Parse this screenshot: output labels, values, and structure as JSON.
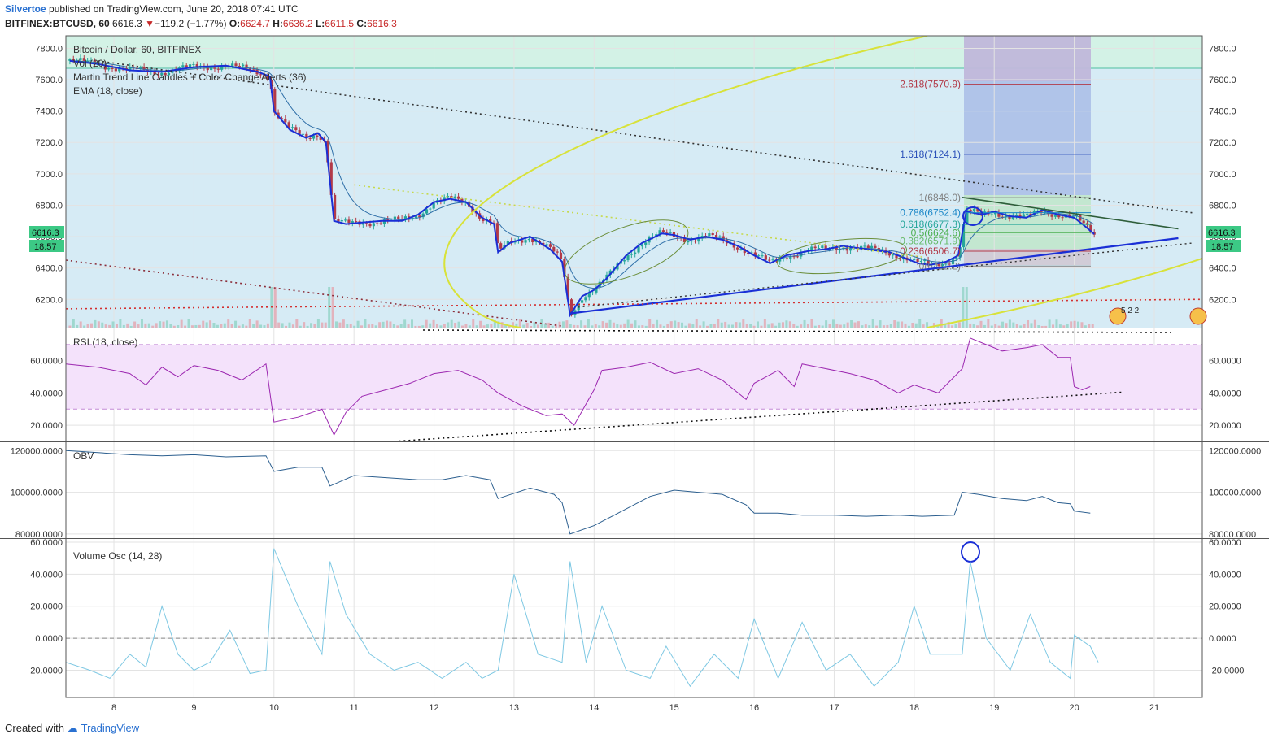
{
  "header": {
    "author": "Silvertoe",
    "published": "published on TradingView.com, June 20, 2018 07:41 UTC",
    "symbol": "BITFINEX:BTCUSD, 60",
    "last": "6616.3",
    "change": "−119.2 (−1.77%)",
    "o_label": "O:",
    "o": "6624.7",
    "h_label": "H:",
    "h": "6636.2",
    "l_label": "L:",
    "l": "6611.5",
    "c_label": "C:",
    "c": "6616.3"
  },
  "legend": {
    "title": "Bitcoin / Dollar, 60, BITFINEX",
    "vol": "Vol (20)",
    "martin": "Martin Trend Line Candles + Color Change Alerts (36)",
    "ema": "EMA (18, close)",
    "rsi": "RSI (18, close)",
    "obv": "OBV",
    "vosc": "Volume Osc (14, 28)"
  },
  "price_badge": {
    "value": "6616.3",
    "timer": "18:57"
  },
  "fib_labels": [
    "2.618(7570.9)",
    "1.618(7124.1)",
    "1(6848.0)",
    "0.786(6752.4)",
    "0.618(6677.3)",
    "0.5(6624.6)",
    "0.382(6571.9)",
    "0.236(6506.7)",
    "0(6412.2)"
  ],
  "fib_values": [
    7570.9,
    7124.1,
    6848.0,
    6752.4,
    6677.3,
    6624.6,
    6571.9,
    6506.7,
    6412.2
  ],
  "fib_colors": [
    "#b23a48",
    "#2a4fb8",
    "#808080",
    "#1e88c8",
    "#26a69a",
    "#4caf50",
    "#66bb6a",
    "#b23a48",
    "#808080"
  ],
  "badge_text": "5 2 2",
  "footer": {
    "created": "Created with",
    "brand": "TradingView"
  },
  "colors": {
    "candle_up": "#26a69a",
    "candle_down": "#b23a48",
    "trend": "#1a2fd6",
    "rsi": "#9c27b0",
    "obv": "#2c5f8f",
    "vosc": "#7ec8e3",
    "ema": "#2f6fa8",
    "price_badge": "#3cc985"
  },
  "chart_data": [
    {
      "type": "candlestick",
      "title": "Bitcoin / Dollar, 60, BITFINEX",
      "x_ticks": [
        "8",
        "9",
        "10",
        "11",
        "12",
        "13",
        "14",
        "15",
        "16",
        "17",
        "18",
        "19",
        "20",
        "21"
      ],
      "y_ticks": [
        "7800.0",
        "7600.0",
        "7400.0",
        "7200.0",
        "7000.0",
        "6800.0",
        "6600.0",
        "6400.0",
        "6200.0"
      ],
      "y_tick_values": [
        7800,
        7600,
        7400,
        7200,
        7000,
        6800,
        6600,
        6400,
        6200
      ],
      "ylim": [
        6020,
        7880
      ],
      "xlim": [
        7.4,
        21.6
      ],
      "close_path": [
        [
          7.45,
          7720
        ],
        [
          7.8,
          7700
        ],
        [
          8.2,
          7660
        ],
        [
          8.6,
          7650
        ],
        [
          9.0,
          7680
        ],
        [
          9.4,
          7690
        ],
        [
          9.8,
          7650
        ],
        [
          9.95,
          7620
        ],
        [
          10.0,
          7400
        ],
        [
          10.2,
          7280
        ],
        [
          10.4,
          7230
        ],
        [
          10.55,
          7260
        ],
        [
          10.65,
          7200
        ],
        [
          10.75,
          6700
        ],
        [
          10.9,
          6680
        ],
        [
          11.1,
          6690
        ],
        [
          11.35,
          6700
        ],
        [
          11.6,
          6700
        ],
        [
          11.8,
          6740
        ],
        [
          12.0,
          6820
        ],
        [
          12.2,
          6840
        ],
        [
          12.4,
          6820
        ],
        [
          12.6,
          6720
        ],
        [
          12.75,
          6680
        ],
        [
          12.8,
          6500
        ],
        [
          12.95,
          6560
        ],
        [
          13.2,
          6600
        ],
        [
          13.45,
          6520
        ],
        [
          13.6,
          6440
        ],
        [
          13.7,
          6100
        ],
        [
          13.85,
          6220
        ],
        [
          14.0,
          6260
        ],
        [
          14.15,
          6330
        ],
        [
          14.4,
          6480
        ],
        [
          14.6,
          6560
        ],
        [
          14.85,
          6620
        ],
        [
          15.0,
          6610
        ],
        [
          15.2,
          6580
        ],
        [
          15.4,
          6600
        ],
        [
          15.6,
          6580
        ],
        [
          15.8,
          6540
        ],
        [
          16.0,
          6480
        ],
        [
          16.2,
          6430
        ],
        [
          16.4,
          6480
        ],
        [
          16.7,
          6510
        ],
        [
          16.9,
          6520
        ],
        [
          17.1,
          6540
        ],
        [
          17.4,
          6520
        ],
        [
          17.7,
          6500
        ],
        [
          17.9,
          6460
        ],
        [
          18.05,
          6430
        ],
        [
          18.2,
          6420
        ],
        [
          18.4,
          6440
        ],
        [
          18.55,
          6480
        ],
        [
          18.65,
          6760
        ],
        [
          18.85,
          6740
        ],
        [
          19.0,
          6760
        ],
        [
          19.2,
          6730
        ],
        [
          19.4,
          6720
        ],
        [
          19.6,
          6770
        ],
        [
          19.8,
          6740
        ],
        [
          20.0,
          6720
        ],
        [
          20.15,
          6660
        ],
        [
          20.25,
          6616
        ]
      ],
      "fib_levels": [
        7570.9,
        7124.1,
        6848.0,
        6752.4,
        6677.3,
        6624.6,
        6571.9,
        6506.7,
        6412.2
      ],
      "trendline_support": [
        [
          13.7,
          6110
        ],
        [
          21.3,
          6590
        ]
      ],
      "trendline_resistance_dotted": [
        [
          7.8,
          7720
        ],
        [
          21.5,
          6750
        ]
      ],
      "trendline_falling_dotted": [
        [
          7.4,
          6450
        ],
        [
          13.6,
          6030
        ]
      ],
      "horizontal_level_red_dotted": [
        [
          7.4,
          6140
        ],
        [
          21.6,
          6200
        ]
      ]
    },
    {
      "type": "line",
      "title": "RSI (18, close)",
      "y_ticks": [
        "60.0000",
        "40.0000",
        "20.0000"
      ],
      "y_tick_values": [
        60,
        40,
        20
      ],
      "ylim": [
        10,
        80
      ],
      "bands": [
        70,
        30
      ],
      "x": [
        7.4,
        7.8,
        8.2,
        8.4,
        8.6,
        8.8,
        9.0,
        9.3,
        9.6,
        9.9,
        10.0,
        10.3,
        10.6,
        10.75,
        10.9,
        11.1,
        11.4,
        11.7,
        12.0,
        12.3,
        12.6,
        12.8,
        13.1,
        13.4,
        13.6,
        13.75,
        14.0,
        14.1,
        14.4,
        14.7,
        15.0,
        15.3,
        15.6,
        15.9,
        16.0,
        16.3,
        16.5,
        16.6,
        16.9,
        17.2,
        17.5,
        17.8,
        18.0,
        18.3,
        18.6,
        18.7,
        18.9,
        19.1,
        19.4,
        19.6,
        19.8,
        19.95,
        20.0,
        20.1,
        20.2
      ],
      "values": [
        58,
        56,
        52,
        45,
        56,
        50,
        57,
        54,
        48,
        58,
        22,
        25,
        30,
        14,
        28,
        38,
        42,
        46,
        52,
        54,
        48,
        40,
        32,
        26,
        27,
        20,
        42,
        54,
        56,
        59,
        52,
        55,
        48,
        36,
        46,
        54,
        44,
        58,
        55,
        52,
        48,
        40,
        45,
        40,
        55,
        74,
        70,
        66,
        68,
        70,
        62,
        62,
        44,
        42,
        44
      ]
    },
    {
      "type": "line",
      "title": "OBV",
      "y_ticks": [
        "120000.0000",
        "100000.0000",
        "80000.0000"
      ],
      "y_tick_values": [
        120000,
        100000,
        80000
      ],
      "ylim": [
        78000,
        124000
      ],
      "x": [
        7.4,
        7.8,
        8.2,
        8.6,
        9.0,
        9.4,
        9.9,
        10.0,
        10.3,
        10.6,
        10.7,
        11.0,
        11.4,
        11.8,
        12.1,
        12.4,
        12.7,
        12.8,
        13.2,
        13.5,
        13.6,
        13.7,
        14.0,
        14.4,
        14.7,
        15.0,
        15.3,
        15.6,
        15.9,
        16.0,
        16.3,
        16.6,
        17.0,
        17.4,
        17.8,
        18.1,
        18.5,
        18.6,
        18.8,
        19.1,
        19.4,
        19.6,
        19.8,
        19.95,
        20.0,
        20.2
      ],
      "values": [
        120000,
        119000,
        118000,
        117500,
        118000,
        117000,
        117500,
        110000,
        112000,
        112000,
        103000,
        108000,
        107000,
        106000,
        106000,
        108000,
        106000,
        97000,
        102000,
        99000,
        95000,
        80000,
        84000,
        92000,
        98000,
        101000,
        100000,
        99000,
        94000,
        90000,
        90000,
        89000,
        89000,
        88500,
        89000,
        88500,
        89000,
        100000,
        99000,
        97000,
        96000,
        98000,
        95000,
        94500,
        91000,
        90000
      ]
    },
    {
      "type": "line",
      "title": "Volume Osc (14, 28)",
      "y_ticks": [
        "60.0000",
        "40.0000",
        "20.0000",
        "0.0000",
        "-20.0000"
      ],
      "y_tick_values": [
        60,
        40,
        20,
        0,
        -20
      ],
      "ylim": [
        -37,
        62
      ],
      "x": [
        7.4,
        7.7,
        7.95,
        8.2,
        8.4,
        8.6,
        8.8,
        9.0,
        9.2,
        9.45,
        9.7,
        9.9,
        10.0,
        10.3,
        10.6,
        10.7,
        10.9,
        11.2,
        11.5,
        11.8,
        12.1,
        12.4,
        12.6,
        12.8,
        13.0,
        13.3,
        13.6,
        13.7,
        13.9,
        14.1,
        14.4,
        14.7,
        14.9,
        15.2,
        15.5,
        15.8,
        16.0,
        16.3,
        16.6,
        16.9,
        17.2,
        17.5,
        17.8,
        18.0,
        18.2,
        18.5,
        18.6,
        18.7,
        18.9,
        19.2,
        19.45,
        19.7,
        19.95,
        20.0,
        20.2,
        20.3
      ],
      "values": [
        -15,
        -20,
        -25,
        -10,
        -18,
        20,
        -10,
        -20,
        -15,
        5,
        -22,
        -20,
        56,
        20,
        -10,
        48,
        15,
        -10,
        -20,
        -15,
        -25,
        -15,
        -25,
        -20,
        40,
        -10,
        -15,
        48,
        -15,
        20,
        -20,
        -25,
        -5,
        -30,
        -10,
        -25,
        12,
        -25,
        10,
        -20,
        -10,
        -30,
        -15,
        20,
        -10,
        -10,
        -10,
        48,
        0,
        -20,
        15,
        -15,
        -25,
        2,
        -5,
        -15
      ]
    }
  ]
}
